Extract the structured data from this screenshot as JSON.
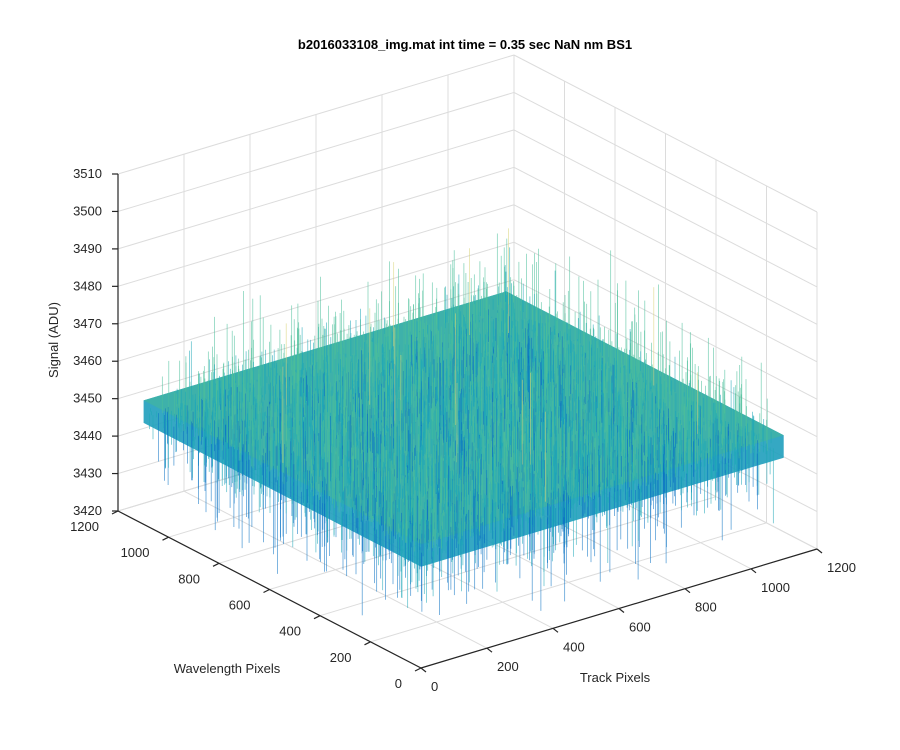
{
  "chart_data": {
    "type": "surface",
    "title": "b2016033108_img.mat int time = 0.35 sec  NaN nm BS1",
    "xlabel": "Track Pixels",
    "ylabel": "Wavelength Pixels",
    "zlabel": "Signal (ADU)",
    "xlim": [
      0,
      1200
    ],
    "ylim": [
      0,
      1200
    ],
    "zlim": [
      3420,
      3510
    ],
    "xticks": [
      "0",
      "200",
      "400",
      "600",
      "800",
      "1000",
      "1200"
    ],
    "yticks": [
      "0",
      "200",
      "400",
      "600",
      "800",
      "1000",
      "1200"
    ],
    "zticks": [
      "3420",
      "3430",
      "3440",
      "3450",
      "3460",
      "3470",
      "3480",
      "3490",
      "3500",
      "3510"
    ],
    "grid": true,
    "colormap": "parula",
    "surface": {
      "x_range": [
        1,
        1100
      ],
      "y_range": [
        1,
        1100
      ],
      "mean_signal": 3450,
      "noise_band": [
        3425,
        3495
      ]
    }
  },
  "colors": {
    "low": "#0a72c4",
    "mid": "#1fa8b8",
    "midhigh": "#4cbf9a",
    "high": "#d9d47a"
  }
}
